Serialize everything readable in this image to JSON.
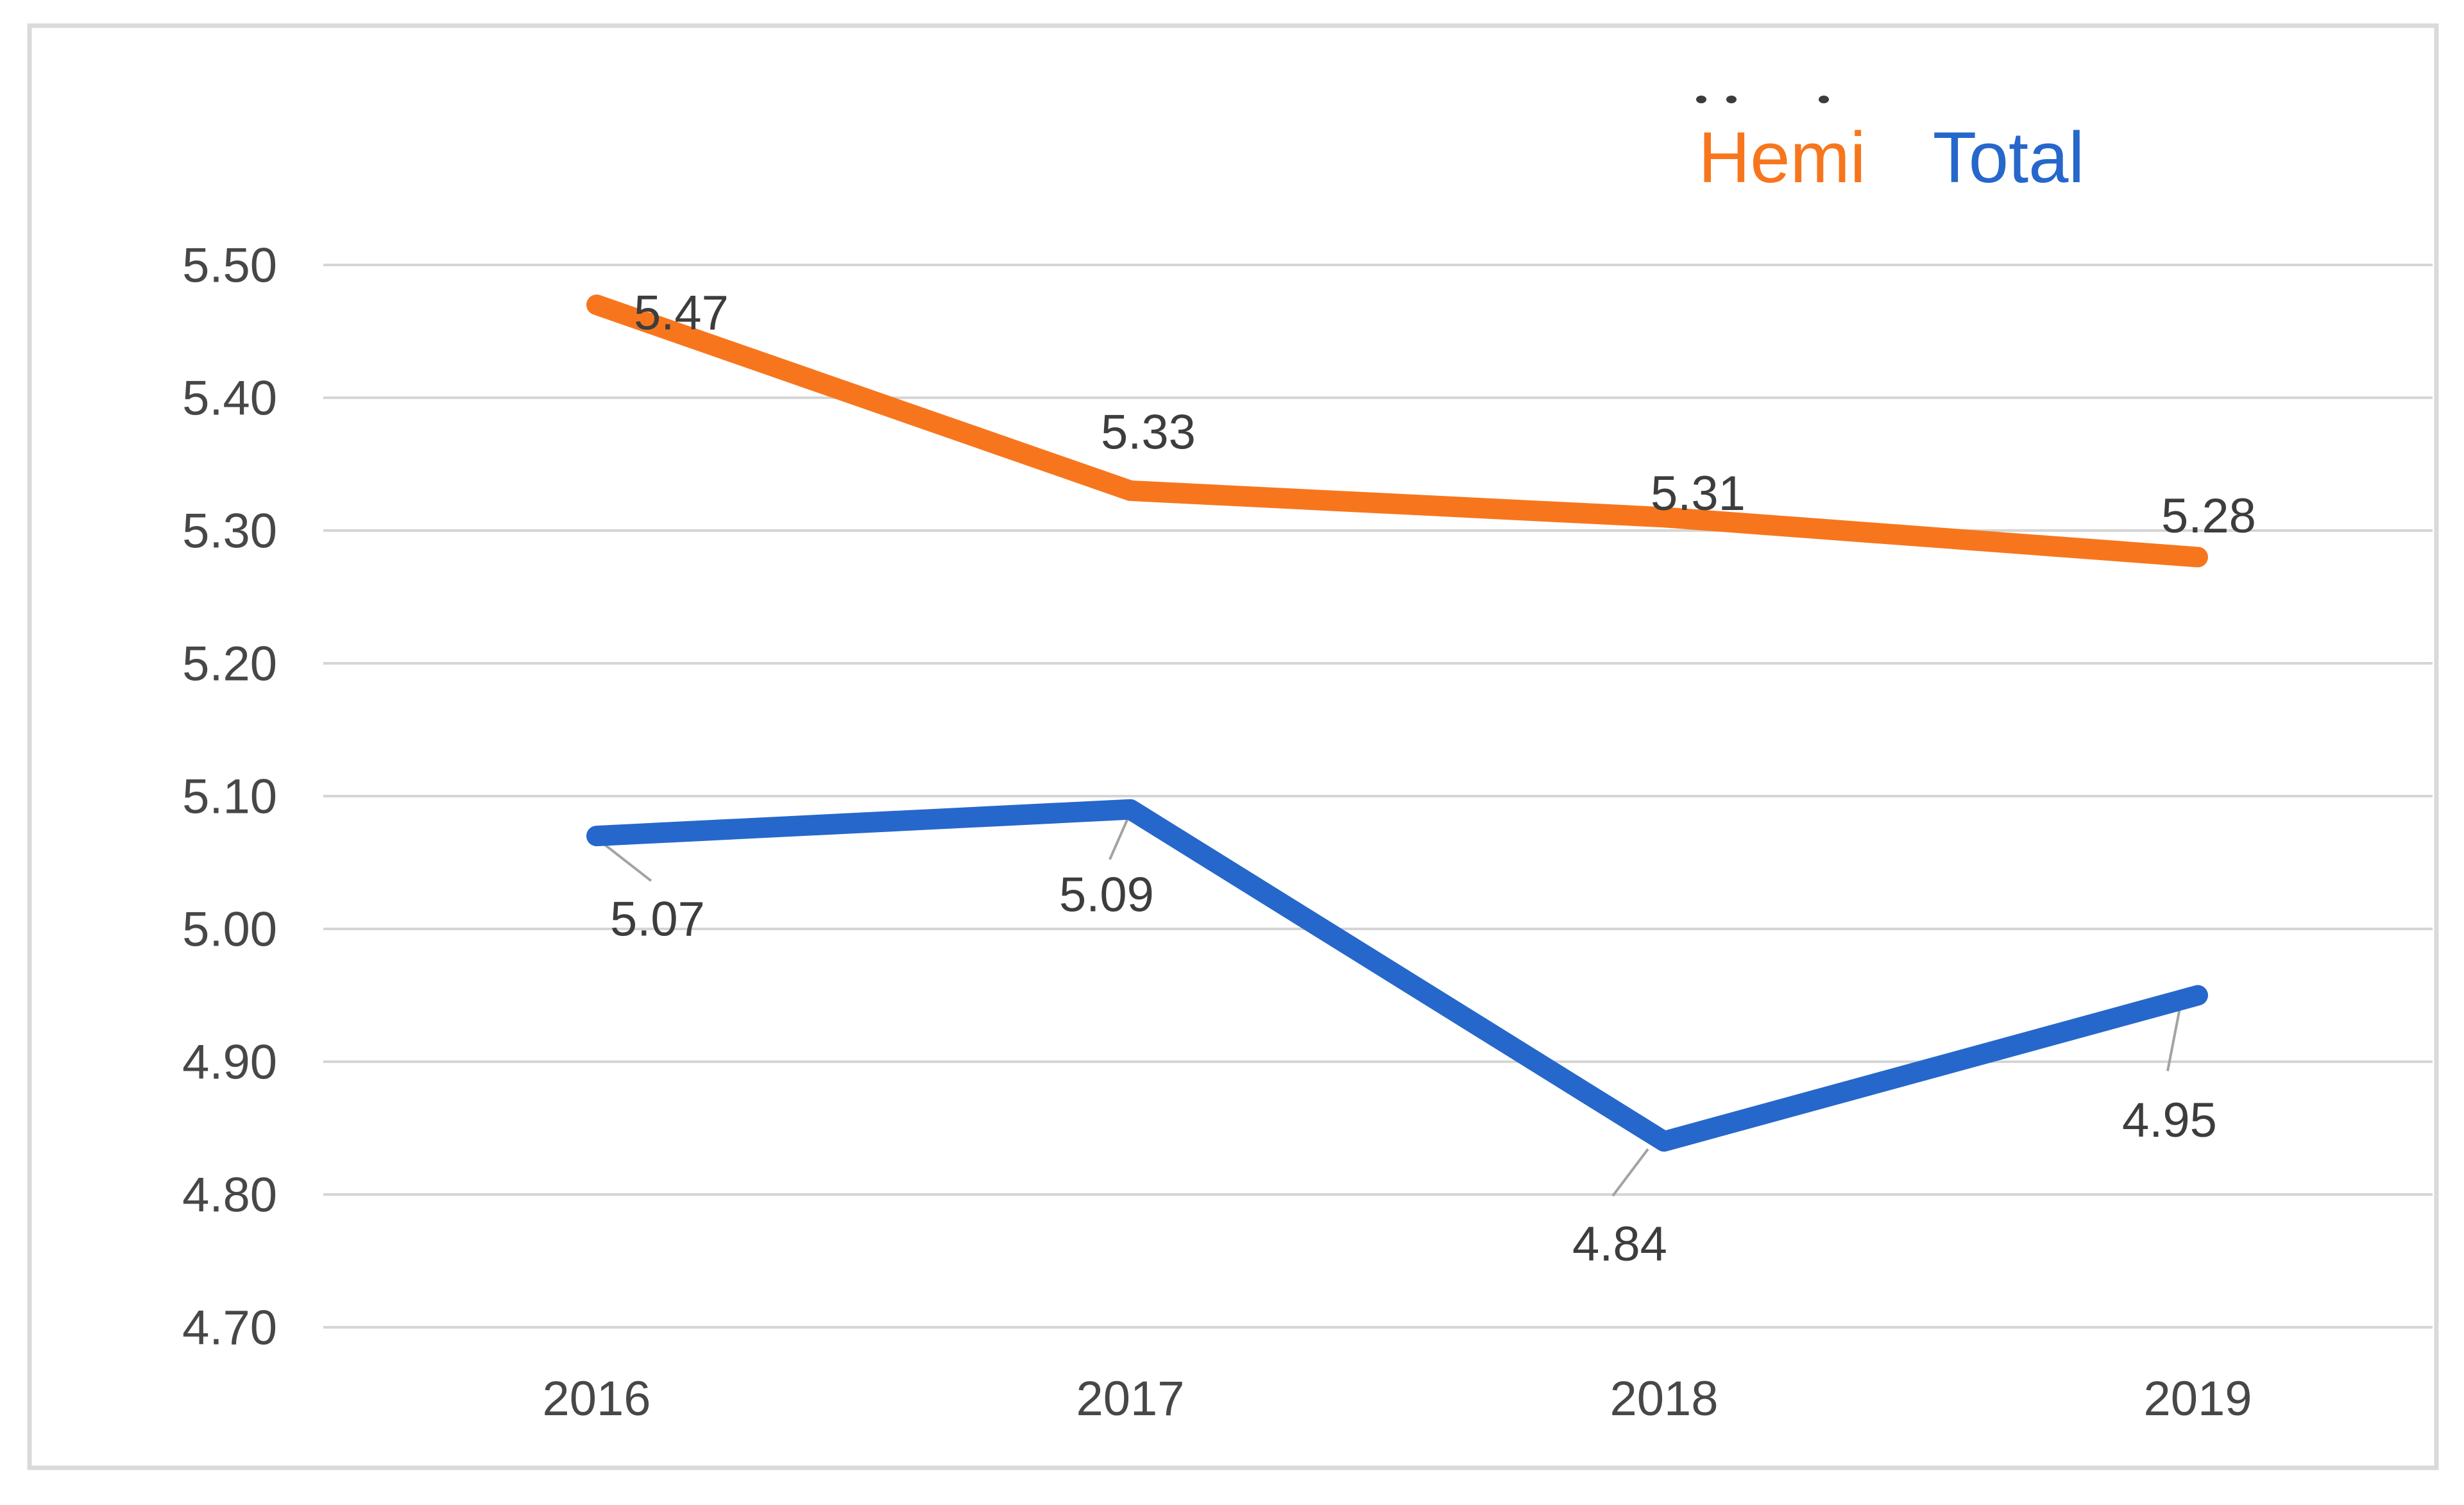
{
  "window": {
    "background": "#FFFFFF",
    "frame_border_color": "#DADADA"
  },
  "chart_data": {
    "type": "line",
    "title": "",
    "xlabel": "",
    "ylabel": "",
    "categories": [
      "2016",
      "2017",
      "2018",
      "2019"
    ],
    "series": [
      {
        "name": "Hemi",
        "color": "#F7761D",
        "values": [
          5.47,
          5.33,
          5.31,
          5.28
        ],
        "data_labels": [
          "5.47",
          "5.33",
          "5.31",
          "5.28"
        ],
        "has_leader_lines": false
      },
      {
        "name": "Total",
        "color": "#2667CB",
        "values": [
          5.07,
          5.09,
          4.84,
          4.95
        ],
        "data_labels": [
          "5.07",
          "5.09",
          "4.84",
          "4.95"
        ],
        "has_leader_lines": true
      }
    ],
    "y_axis": {
      "ticks": [
        "5.50",
        "5.40",
        "5.30",
        "5.20",
        "5.10",
        "5.00",
        "4.90",
        "4.80",
        "4.70"
      ],
      "min": 4.7,
      "max": 5.5,
      "step": 0.1
    },
    "x_axis": {
      "ticks": [
        "2016",
        "2017",
        "2018",
        "2019"
      ]
    },
    "grid": "horizontal",
    "gridline_color": "#D5D5D5",
    "legend": {
      "position": "top-right",
      "items": [
        {
          "label": "Hemi",
          "color": "#F7761D"
        },
        {
          "label": "Total",
          "color": "#2667CB"
        }
      ],
      "artifact_dots_above_legend": 3,
      "artifact_dot_color": "#3C3C3C"
    },
    "text_colors": {
      "axis_tick": "#474747",
      "data_label": "#3D3D3D"
    },
    "leader_line_color": "#A3A3A3"
  }
}
